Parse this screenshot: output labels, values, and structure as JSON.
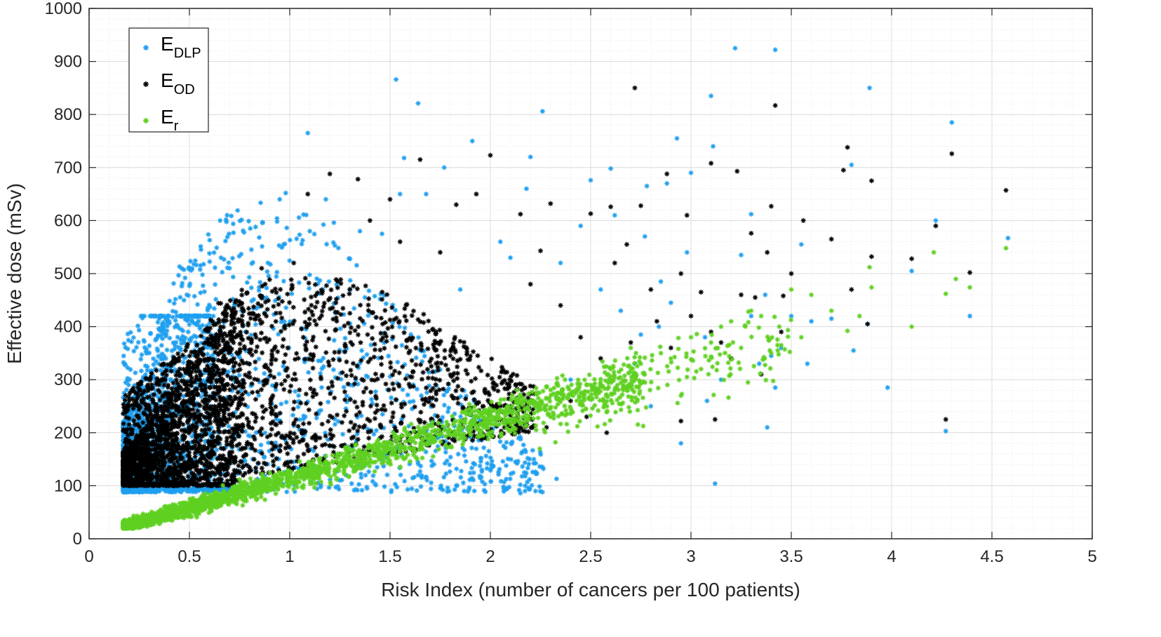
{
  "chart_data": {
    "type": "scatter",
    "title": "",
    "xlabel": "Risk Index (number of cancers per 100 patients)",
    "ylabel": "Effective dose (mSv)",
    "xlim": [
      0,
      5
    ],
    "ylim": [
      0,
      1000
    ],
    "xticks": [
      0,
      0.5,
      1,
      1.5,
      2,
      2.5,
      3,
      3.5,
      4,
      4.5,
      5
    ],
    "yticks": [
      0,
      100,
      200,
      300,
      400,
      500,
      600,
      700,
      800,
      900,
      1000
    ],
    "xtick_labels": [
      "0",
      "0.5",
      "1",
      "1.5",
      "2",
      "2.5",
      "3",
      "3.5",
      "4",
      "4.5",
      "5"
    ],
    "ytick_labels": [
      "0",
      "100",
      "200",
      "300",
      "400",
      "500",
      "600",
      "700",
      "800",
      "900",
      "1000"
    ],
    "grid": true,
    "minor_grid": true,
    "marker": "*",
    "legend_position": "top-left",
    "series": [
      {
        "name": "E_DLP",
        "label_main": "E",
        "label_sub": "DLP",
        "color": "#1e9fef",
        "cloud": {
          "x_range": [
            0.17,
            2.3
          ],
          "min_y": 88,
          "dense_region": [
            0.17,
            0.6
          ]
        },
        "points": [
          [
            1.53,
            866
          ],
          [
            1.64,
            821
          ],
          [
            1.09,
            765
          ],
          [
            1.91,
            750
          ],
          [
            1.57,
            718
          ],
          [
            1.77,
            700
          ],
          [
            0.98,
            652
          ],
          [
            1.18,
            640
          ],
          [
            0.83,
            588
          ],
          [
            3.22,
            925
          ],
          [
            3.42,
            922
          ],
          [
            3.1,
            835
          ],
          [
            2.26,
            806
          ],
          [
            3.89,
            850
          ],
          [
            4.3,
            785
          ],
          [
            2.93,
            755
          ],
          [
            3.11,
            740
          ],
          [
            3.8,
            705
          ],
          [
            4.22,
            600
          ],
          [
            4.58,
            567
          ],
          [
            3.88,
            405
          ],
          [
            4.39,
            420
          ],
          [
            4.27,
            203
          ],
          [
            3.81,
            355
          ],
          [
            3.58,
            330
          ],
          [
            3.12,
            104
          ],
          [
            2.15,
            86
          ],
          [
            2.33,
            113
          ],
          [
            2.95,
            180
          ],
          [
            3.38,
            210
          ],
          [
            3.42,
            285
          ],
          [
            2.6,
            698
          ],
          [
            2.78,
            665
          ],
          [
            3.3,
            612
          ],
          [
            2.5,
            676
          ],
          [
            2.62,
            610
          ],
          [
            2.18,
            660
          ],
          [
            1.22,
            596
          ],
          [
            1.35,
            580
          ],
          [
            2.1,
            530
          ],
          [
            3.55,
            555
          ],
          [
            2.88,
            670
          ],
          [
            3.0,
            690
          ],
          [
            1.46,
            575
          ],
          [
            0.6,
            538
          ],
          [
            0.7,
            510
          ],
          [
            2.77,
            570
          ],
          [
            3.25,
            535
          ],
          [
            3.37,
            460
          ],
          [
            2.2,
            720
          ],
          [
            1.55,
            650
          ],
          [
            2.05,
            560
          ],
          [
            4.1,
            505
          ],
          [
            3.7,
            415
          ],
          [
            3.98,
            285
          ],
          [
            2.84,
            400
          ],
          [
            3.4,
            345
          ],
          [
            2.9,
            445
          ],
          [
            3.07,
            380
          ],
          [
            3.45,
            360
          ],
          [
            2.75,
            385
          ],
          [
            2.98,
            540
          ],
          [
            3.6,
            410
          ],
          [
            2.55,
            470
          ],
          [
            3.3,
            420
          ],
          [
            2.35,
            520
          ],
          [
            1.85,
            470
          ],
          [
            2.65,
            430
          ],
          [
            3.15,
            300
          ],
          [
            2.8,
            250
          ],
          [
            3.5,
            420
          ],
          [
            1.68,
            650
          ],
          [
            1.1,
            580
          ],
          [
            0.95,
            640
          ],
          [
            2.45,
            590
          ],
          [
            2.85,
            485
          ],
          [
            3.08,
            260
          ],
          [
            3.34,
            330
          ],
          [
            2.72,
            330
          ],
          [
            2.4,
            300
          ]
        ]
      },
      {
        "name": "E_OD",
        "label_main": "E",
        "label_sub": "OD",
        "color": "#000000",
        "cloud": {
          "x_range": [
            0.17,
            2.2
          ],
          "min_y": 100,
          "dense_region": [
            0.17,
            0.8
          ]
        },
        "points": [
          [
            2.72,
            850
          ],
          [
            3.42,
            817
          ],
          [
            3.78,
            738
          ],
          [
            4.3,
            726
          ],
          [
            2.0,
            723
          ],
          [
            1.65,
            715
          ],
          [
            1.2,
            688
          ],
          [
            3.1,
            708
          ],
          [
            3.9,
            675
          ],
          [
            4.57,
            657
          ],
          [
            3.23,
            693
          ],
          [
            1.34,
            678
          ],
          [
            1.09,
            650
          ],
          [
            4.22,
            590
          ],
          [
            3.76,
            695
          ],
          [
            3.56,
            600
          ],
          [
            3.7,
            565
          ],
          [
            4.39,
            502
          ],
          [
            3.9,
            532
          ],
          [
            4.1,
            528
          ],
          [
            3.8,
            470
          ],
          [
            3.88,
            405
          ],
          [
            4.27,
            225
          ],
          [
            2.95,
            222
          ],
          [
            3.12,
            225
          ],
          [
            1.93,
            650
          ],
          [
            2.6,
            626
          ],
          [
            2.3,
            632
          ],
          [
            2.15,
            612
          ],
          [
            2.5,
            613
          ],
          [
            3.4,
            627
          ],
          [
            2.75,
            628
          ],
          [
            1.83,
            630
          ],
          [
            1.5,
            640
          ],
          [
            1.02,
            520
          ],
          [
            0.86,
            510
          ],
          [
            1.75,
            540
          ],
          [
            2.25,
            543
          ],
          [
            2.88,
            688
          ],
          [
            2.98,
            610
          ],
          [
            3.3,
            576
          ],
          [
            3.05,
            465
          ],
          [
            2.83,
            410
          ],
          [
            3.5,
            500
          ],
          [
            3.46,
            458
          ],
          [
            3.2,
            340
          ],
          [
            3.35,
            310
          ],
          [
            3.25,
            460
          ],
          [
            3.45,
            390
          ],
          [
            3.1,
            390
          ],
          [
            3.15,
            370
          ],
          [
            2.9,
            360
          ],
          [
            2.7,
            370
          ],
          [
            2.55,
            340
          ],
          [
            2.45,
            380
          ],
          [
            3.32,
            455
          ],
          [
            2.62,
            520
          ],
          [
            2.2,
            480
          ],
          [
            2.35,
            440
          ],
          [
            1.4,
            600
          ],
          [
            1.55,
            560
          ],
          [
            2.95,
            500
          ],
          [
            2.68,
            555
          ],
          [
            3.38,
            540
          ],
          [
            3.0,
            420
          ],
          [
            2.8,
            470
          ],
          [
            2.4,
            260
          ],
          [
            2.58,
            200
          ],
          [
            2.1,
            250
          ],
          [
            2.48,
            230
          ],
          [
            2.28,
            210
          ]
        ]
      },
      {
        "name": "E_r",
        "label_main": "E",
        "label_sub": "r",
        "color": "#5fd021",
        "cloud": {
          "x_range": [
            0.17,
            3.5
          ],
          "model": "approx. linear",
          "intercept": 4,
          "slope": 110,
          "spread": 15
        },
        "points": [
          [
            4.57,
            548
          ],
          [
            4.21,
            540
          ],
          [
            3.89,
            512
          ],
          [
            4.32,
            490
          ],
          [
            4.39,
            474
          ],
          [
            4.27,
            462
          ],
          [
            3.9,
            474
          ],
          [
            4.1,
            400
          ],
          [
            3.84,
            420
          ],
          [
            3.78,
            392
          ],
          [
            3.7,
            430
          ],
          [
            3.6,
            460
          ],
          [
            3.5,
            470
          ],
          [
            3.55,
            380
          ],
          [
            3.44,
            400
          ],
          [
            3.3,
            430
          ],
          [
            3.25,
            360
          ],
          [
            3.4,
            350
          ],
          [
            3.1,
            370
          ],
          [
            3.0,
            380
          ],
          [
            2.95,
            270
          ],
          [
            2.7,
            360
          ],
          [
            2.75,
            330
          ],
          [
            2.6,
            320
          ],
          [
            2.5,
            290
          ],
          [
            3.35,
            420
          ],
          [
            3.15,
            400
          ],
          [
            2.9,
            340
          ],
          [
            2.85,
            350
          ],
          [
            3.2,
            410
          ],
          [
            3.05,
            320
          ],
          [
            2.98,
            305
          ],
          [
            3.45,
            365
          ]
        ]
      }
    ]
  }
}
